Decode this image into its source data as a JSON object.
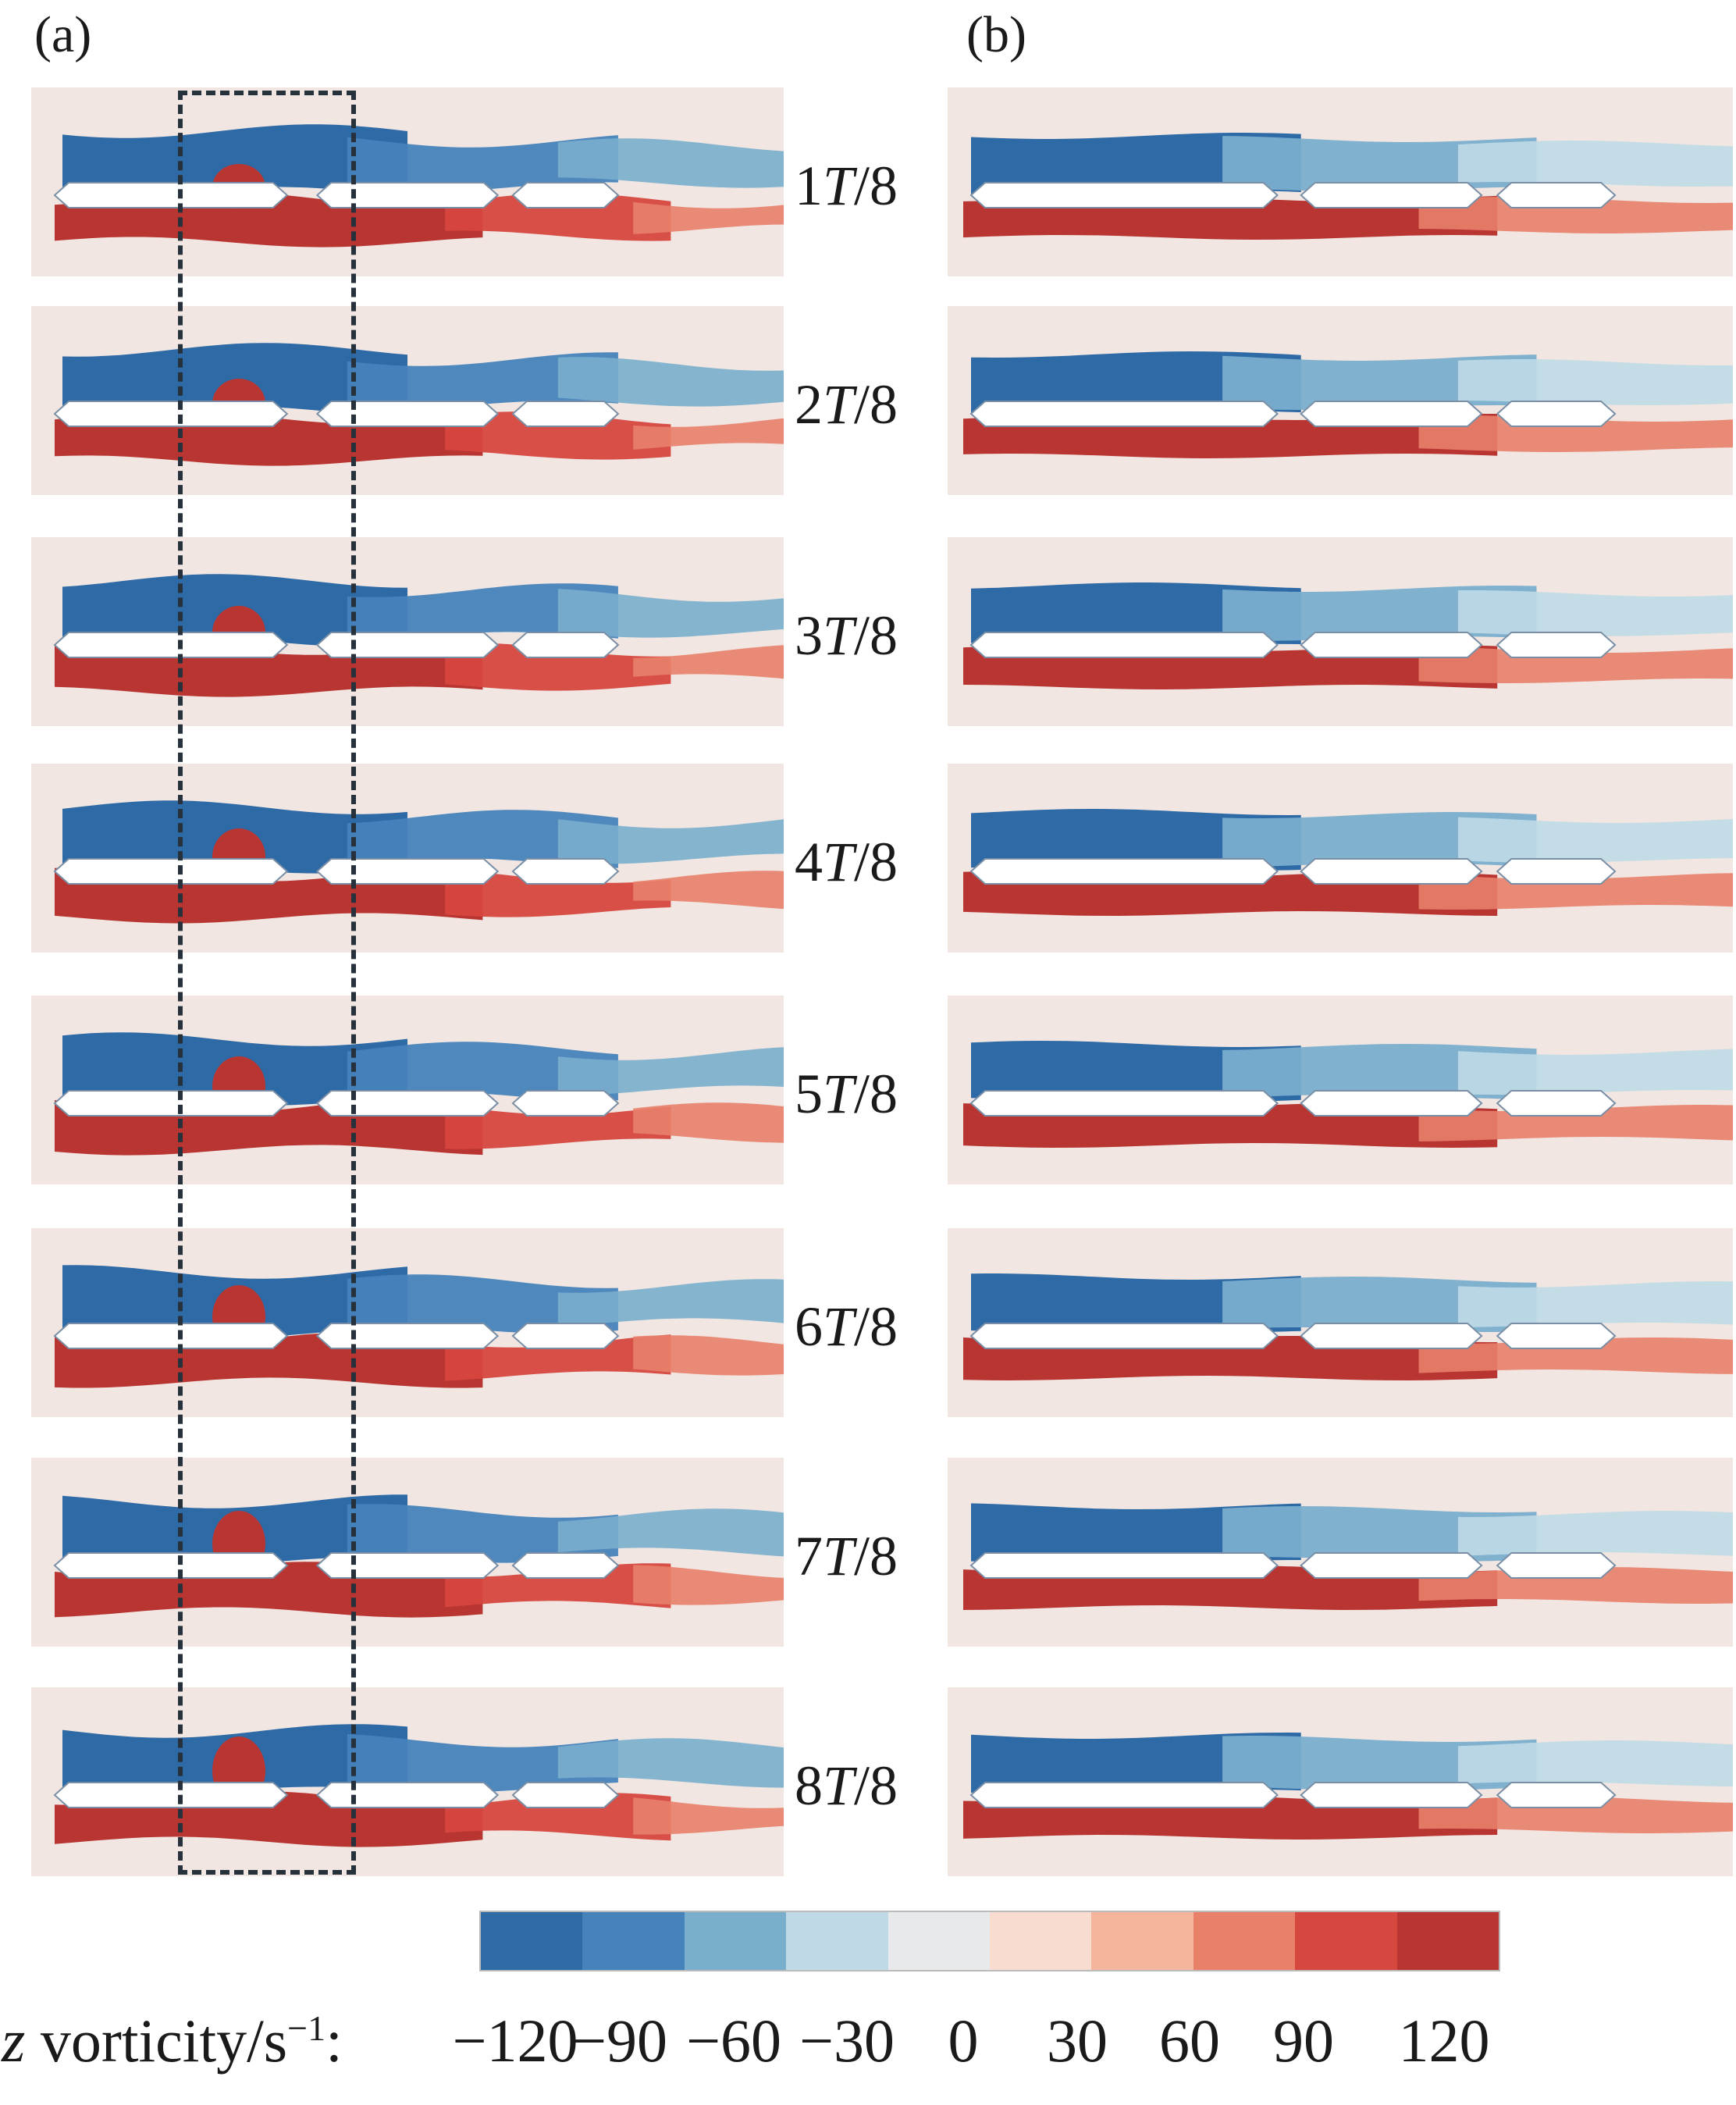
{
  "panels": {
    "a": {
      "label": "(a)"
    },
    "b": {
      "label": "(b)"
    }
  },
  "time_labels": [
    {
      "num": "1",
      "var": "T",
      "den": "/8"
    },
    {
      "num": "2",
      "var": "T",
      "den": "/8"
    },
    {
      "num": "3",
      "var": "T",
      "den": "/8"
    },
    {
      "num": "4",
      "var": "T",
      "den": "/8"
    },
    {
      "num": "5",
      "var": "T",
      "den": "/8"
    },
    {
      "num": "6",
      "var": "T",
      "den": "/8"
    },
    {
      "num": "7",
      "var": "T",
      "den": "/8"
    },
    {
      "num": "8",
      "var": "T",
      "den": "/8"
    }
  ],
  "colorbar": {
    "axis": "z",
    "title": " vorticity/s",
    "superscript": "−1",
    "suffix": ":",
    "ticks": [
      "−120",
      "−90",
      "−60",
      "−30",
      "0",
      "30",
      "60",
      "90",
      "120"
    ],
    "colors": [
      "#2e6aa6",
      "#4683ba",
      "#79aecd",
      "#bfdae6",
      "#e7e9eb",
      "#f7dccf",
      "#f4b59c",
      "#e8806a",
      "#d6473f",
      "#b83532"
    ]
  },
  "colors": {
    "background": "#f1e6e1",
    "negative_vorticity": "#2e6aa6",
    "positive_vorticity": "#c8342d",
    "dashed_box": "#27313b"
  }
}
